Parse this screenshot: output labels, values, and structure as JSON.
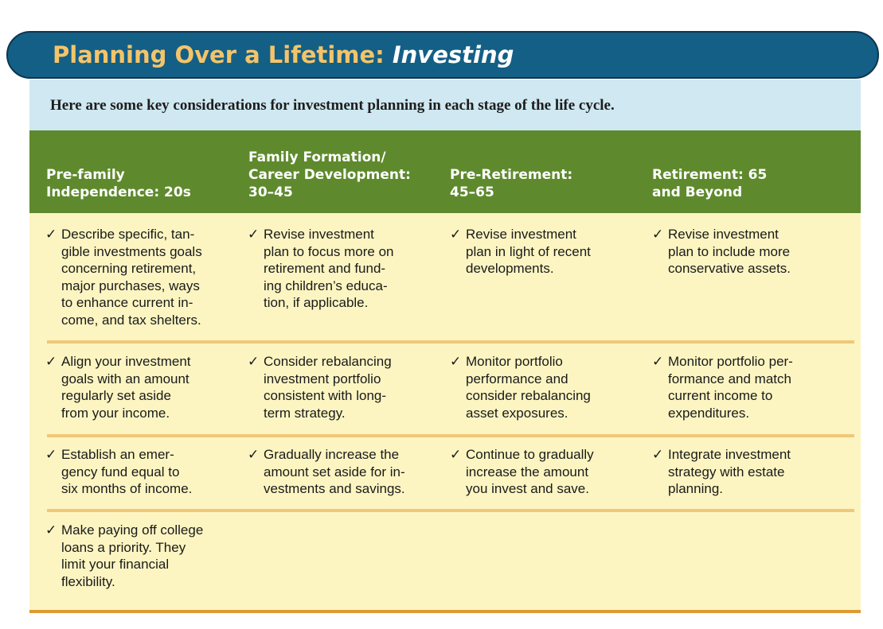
{
  "title": {
    "main": "Planning Over a Lifetime: ",
    "emphasis": "Investing"
  },
  "intro": "Here are some key considerations for investment planning in each stage of the life cycle.",
  "check": "✓",
  "columns": [
    {
      "lines": [
        "Pre-family",
        "Independence: 20s"
      ]
    },
    {
      "lines": [
        "Family Formation/",
        "Career Development:",
        "30–45"
      ]
    },
    {
      "lines": [
        "Pre-Retirement:",
        "45–65"
      ]
    },
    {
      "lines": [
        "Retirement: 65",
        "and Beyond"
      ]
    }
  ],
  "rows": [
    [
      {
        "lines": [
          "Describe specific, tan-",
          "gible investments goals",
          "concerning retirement,",
          "major purchases, ways",
          "to enhance current in-",
          "come, and tax shelters."
        ]
      },
      {
        "lines": [
          "Revise investment",
          "plan to focus more on",
          "retirement and fund-",
          "ing children’s educa-",
          "tion, if applicable."
        ]
      },
      {
        "lines": [
          "Revise investment",
          "plan in light of recent",
          "developments."
        ]
      },
      {
        "lines": [
          "Revise investment",
          "plan to include more",
          "conservative assets."
        ]
      }
    ],
    [
      {
        "lines": [
          "Align your investment",
          "goals with an amount",
          "regularly set aside",
          "from your income."
        ]
      },
      {
        "lines": [
          "Consider rebalancing",
          "investment portfolio",
          "consistent with long-",
          "term strategy."
        ]
      },
      {
        "lines": [
          "Monitor portfolio",
          "performance and",
          "consider rebalancing",
          "asset exposures."
        ]
      },
      {
        "lines": [
          "Monitor portfolio per-",
          "formance and match",
          "current income to",
          "expenditures."
        ]
      }
    ],
    [
      {
        "lines": [
          "Establish an emer-",
          "gency fund equal to",
          "six months of income."
        ]
      },
      {
        "lines": [
          "Gradually increase the",
          "amount set aside for in-",
          "vestments and savings."
        ]
      },
      {
        "lines": [
          "Continue to gradually",
          "increase the amount",
          "you invest and save."
        ]
      },
      {
        "lines": [
          "Integrate investment",
          "strategy with estate",
          "planning."
        ]
      }
    ],
    [
      {
        "lines": [
          "Make paying off college",
          "loans a priority. They",
          "limit your financial",
          "flexibility."
        ]
      }
    ]
  ],
  "colors": {
    "banner": "#145f86",
    "title_accent": "#f4c46a",
    "intro_background": "#cfe8f1",
    "header_background": "#5e8a2d",
    "body_background": "#fcf5c2",
    "separator": "#f0c878",
    "bottom_rule": "#df9a33"
  }
}
